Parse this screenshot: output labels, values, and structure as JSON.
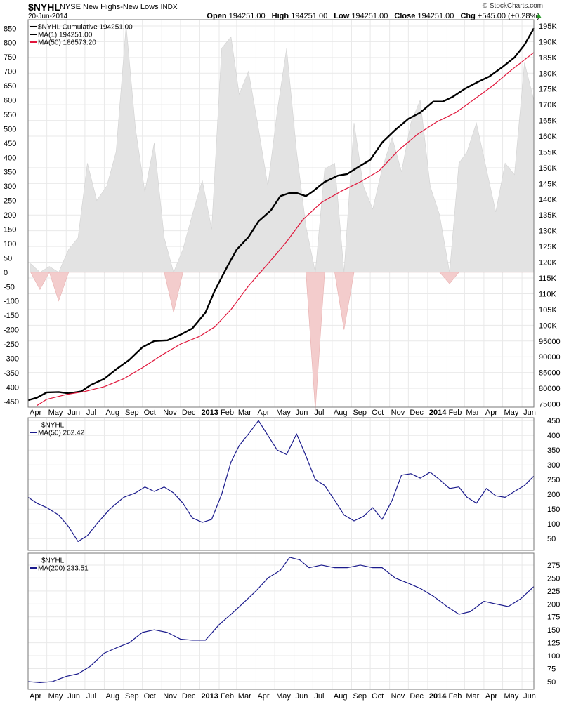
{
  "header": {
    "symbol": "$NYHL",
    "description": "NYSE New Highs-New Lows",
    "type_label": "INDX",
    "date": "20-Jun-2014",
    "brand": "© StockCharts.com",
    "open_label": "Open",
    "open": "194251.00",
    "high_label": "High",
    "high": "194251.00",
    "low_label": "Low",
    "low": "194251.00",
    "close_label": "Close",
    "close": "194251.00",
    "chg_label": "Chg",
    "chg": "+545.00 (+0.28%)",
    "chg_direction": "up"
  },
  "colors": {
    "cumulative": "#000000",
    "ma50_red": "#e0153a",
    "histogram_pos": "#e3e3e3",
    "histogram_neg": "#f3cccc",
    "ma_blue": "#1a1a8c",
    "grid": "#e9e9e9"
  },
  "x_axis": {
    "labels": [
      "Apr",
      "May",
      "Jun",
      "Jul",
      "Aug",
      "Sep",
      "Oct",
      "Nov",
      "Dec",
      "2013",
      "Feb",
      "Mar",
      "Apr",
      "May",
      "Jun",
      "Jul",
      "Aug",
      "Sep",
      "Oct",
      "Nov",
      "Dec",
      "2014",
      "Feb",
      "Mar",
      "Apr",
      "May",
      "Jun"
    ],
    "bold_labels": [
      "2013",
      "2014"
    ],
    "start": "2012-04",
    "end": "2014-06-20"
  },
  "chart_data": [
    {
      "type": "line",
      "panel": "main",
      "legend": [
        {
          "label": "$NYHL Cumulative 194251.00",
          "color": "#000000"
        },
        {
          "label": "MA(1) 194251.00",
          "color": "#000000"
        },
        {
          "label": "MA(50) 186573.20",
          "color": "#e0153a"
        }
      ],
      "left_axis": {
        "ticks": [
          850,
          800,
          750,
          700,
          650,
          600,
          550,
          500,
          450,
          400,
          350,
          300,
          250,
          200,
          150,
          100,
          50,
          0,
          -50,
          -100,
          -150,
          -200,
          -250,
          -300,
          -350,
          -400,
          -450
        ],
        "ylim": [
          -470,
          880
        ]
      },
      "right_axis": {
        "ticks": [
          195000,
          190000,
          185000,
          180000,
          175000,
          170000,
          165000,
          160000,
          155000,
          150000,
          145000,
          140000,
          135000,
          130000,
          125000,
          120000,
          115000,
          110000,
          105000,
          100000,
          95000,
          90000,
          85000,
          80000,
          75000
        ],
        "tick_labels": [
          "195K",
          "190K",
          "185K",
          "180K",
          "175K",
          "170K",
          "165K",
          "160K",
          "155K",
          "150K",
          "145K",
          "140K",
          "135K",
          "130K",
          "125K",
          "120K",
          "115K",
          "110K",
          "105K",
          "100K",
          "95000",
          "90000",
          "85000",
          "80000",
          "75000"
        ],
        "ylim": [
          74000,
          197000
        ]
      },
      "series": [
        {
          "name": "$NYHL Cumulative",
          "axis": "right",
          "color": "#000000",
          "x": [
            "2012-04-01",
            "2012-04-15",
            "2012-05-01",
            "2012-05-20",
            "2012-06-05",
            "2012-06-25",
            "2012-07-10",
            "2012-08-01",
            "2012-08-20",
            "2012-09-10",
            "2012-10-01",
            "2012-10-20",
            "2012-11-10",
            "2012-12-01",
            "2012-12-20",
            "2013-01-10",
            "2013-01-25",
            "2013-02-15",
            "2013-03-01",
            "2013-03-20",
            "2013-04-05",
            "2013-04-25",
            "2013-05-10",
            "2013-05-25",
            "2013-06-05",
            "2013-06-20",
            "2013-07-01",
            "2013-07-20",
            "2013-08-10",
            "2013-08-25",
            "2013-09-10",
            "2013-10-01",
            "2013-10-20",
            "2013-11-10",
            "2013-12-01",
            "2013-12-20",
            "2014-01-10",
            "2014-01-25",
            "2014-02-10",
            "2014-03-01",
            "2014-03-20",
            "2014-04-10",
            "2014-05-01",
            "2014-05-20",
            "2014-06-05",
            "2014-06-20"
          ],
          "y": [
            76200,
            77000,
            78700,
            78800,
            78400,
            79000,
            81000,
            83000,
            86000,
            89000,
            93000,
            95000,
            95200,
            97000,
            99000,
            104000,
            111000,
            119000,
            124000,
            128000,
            133000,
            136500,
            141000,
            142000,
            142000,
            141000,
            142500,
            145500,
            147500,
            148000,
            150000,
            152500,
            158000,
            162000,
            165500,
            167500,
            171000,
            171000,
            172500,
            175000,
            177000,
            179000,
            182000,
            185000,
            189000,
            194251
          ]
        },
        {
          "name": "MA(50)",
          "axis": "right",
          "color": "#e0153a",
          "x": [
            "2012-04-15",
            "2012-05-01",
            "2012-06-01",
            "2012-07-01",
            "2012-08-01",
            "2012-09-01",
            "2012-10-01",
            "2012-11-01",
            "2012-12-01",
            "2013-01-01",
            "2013-01-25",
            "2013-02-20",
            "2013-03-20",
            "2013-04-20",
            "2013-05-20",
            "2013-06-15",
            "2013-07-15",
            "2013-08-15",
            "2013-09-15",
            "2013-10-15",
            "2013-11-15",
            "2013-12-15",
            "2014-01-15",
            "2014-02-15",
            "2014-03-15",
            "2014-04-15",
            "2014-05-15",
            "2014-06-20"
          ],
          "y": [
            74500,
            76500,
            78000,
            79000,
            80500,
            83000,
            86500,
            90500,
            94000,
            96500,
            99500,
            105000,
            112500,
            119500,
            126500,
            133500,
            139000,
            142500,
            145500,
            149000,
            155500,
            160500,
            164500,
            167500,
            171500,
            176000,
            181000,
            186573
          ]
        }
      ],
      "histogram": {
        "name": "$NYHL",
        "axis": "left",
        "x": [
          "2012-04-05",
          "2012-04-20",
          "2012-05-05",
          "2012-05-20",
          "2012-06-05",
          "2012-06-20",
          "2012-07-05",
          "2012-07-20",
          "2012-08-05",
          "2012-08-20",
          "2012-09-05",
          "2012-09-20",
          "2012-10-05",
          "2012-10-20",
          "2012-11-05",
          "2012-11-20",
          "2012-12-05",
          "2012-12-20",
          "2013-01-05",
          "2013-01-20",
          "2013-02-05",
          "2013-02-20",
          "2013-03-05",
          "2013-03-20",
          "2013-04-05",
          "2013-04-20",
          "2013-05-05",
          "2013-05-20",
          "2013-06-05",
          "2013-06-20",
          "2013-07-05",
          "2013-07-20",
          "2013-08-05",
          "2013-08-20",
          "2013-09-05",
          "2013-09-20",
          "2013-10-05",
          "2013-10-20",
          "2013-11-05",
          "2013-11-20",
          "2013-12-05",
          "2013-12-20",
          "2014-01-05",
          "2014-01-20",
          "2014-02-05",
          "2014-02-20",
          "2014-03-05",
          "2014-03-20",
          "2014-04-05",
          "2014-04-20",
          "2014-05-05",
          "2014-05-20",
          "2014-06-05",
          "2014-06-20"
        ],
        "y": [
          30,
          -60,
          20,
          -100,
          80,
          120,
          380,
          250,
          300,
          420,
          860,
          500,
          280,
          450,
          120,
          -140,
          80,
          200,
          320,
          150,
          780,
          820,
          620,
          700,
          500,
          300,
          560,
          780,
          420,
          160,
          -480,
          360,
          380,
          -200,
          520,
          300,
          220,
          360,
          470,
          350,
          520,
          600,
          300,
          200,
          -40,
          380,
          420,
          520,
          360,
          210,
          380,
          340,
          730,
          600
        ]
      }
    },
    {
      "type": "line",
      "panel": "middle",
      "legend": [
        {
          "label": "$NYHL",
          "color": "#000000"
        },
        {
          "label": "MA(50) 262.42",
          "color": "#1a1a8c"
        }
      ],
      "right_axis": {
        "ticks": [
          450,
          400,
          350,
          300,
          250,
          200,
          150,
          100,
          50
        ],
        "ylim": [
          10,
          460
        ]
      },
      "series": [
        {
          "name": "MA(50)",
          "color": "#1a1a8c",
          "x": [
            "2012-04-01",
            "2012-04-15",
            "2012-05-01",
            "2012-05-20",
            "2012-06-05",
            "2012-06-20",
            "2012-07-05",
            "2012-07-20",
            "2012-08-10",
            "2012-09-01",
            "2012-09-20",
            "2012-10-05",
            "2012-10-20",
            "2012-11-05",
            "2012-11-20",
            "2012-12-05",
            "2012-12-20",
            "2013-01-05",
            "2013-01-20",
            "2013-02-05",
            "2013-02-20",
            "2013-03-05",
            "2013-03-20",
            "2013-04-05",
            "2013-04-20",
            "2013-05-05",
            "2013-05-20",
            "2013-06-05",
            "2013-06-20",
            "2013-07-05",
            "2013-07-20",
            "2013-08-05",
            "2013-08-20",
            "2013-09-05",
            "2013-09-20",
            "2013-10-05",
            "2013-10-20",
            "2013-11-05",
            "2013-11-20",
            "2013-12-05",
            "2013-12-20",
            "2014-01-05",
            "2014-01-20",
            "2014-02-05",
            "2014-02-20",
            "2014-03-05",
            "2014-03-20",
            "2014-04-05",
            "2014-04-20",
            "2014-05-05",
            "2014-05-20",
            "2014-06-05",
            "2014-06-20"
          ],
          "y": [
            190,
            170,
            155,
            130,
            90,
            40,
            60,
            100,
            150,
            190,
            205,
            225,
            210,
            225,
            205,
            170,
            120,
            105,
            115,
            200,
            310,
            365,
            405,
            450,
            400,
            350,
            335,
            405,
            330,
            250,
            230,
            180,
            130,
            110,
            125,
            155,
            115,
            180,
            265,
            270,
            255,
            275,
            250,
            220,
            225,
            190,
            170,
            220,
            195,
            190,
            210,
            230,
            262
          ]
        }
      ]
    },
    {
      "type": "line",
      "panel": "bottom",
      "legend": [
        {
          "label": "$NYHL",
          "color": "#000000"
        },
        {
          "label": "MA(200) 233.51",
          "color": "#1a1a8c"
        }
      ],
      "right_axis": {
        "ticks": [
          275,
          250,
          225,
          200,
          175,
          150,
          125,
          100,
          75,
          50
        ],
        "ylim": [
          35,
          298
        ]
      },
      "series": [
        {
          "name": "MA(200)",
          "color": "#1a1a8c",
          "x": [
            "2012-04-01",
            "2012-04-20",
            "2012-05-10",
            "2012-06-01",
            "2012-06-20",
            "2012-07-10",
            "2012-08-01",
            "2012-08-20",
            "2012-09-10",
            "2012-10-01",
            "2012-10-20",
            "2012-11-10",
            "2012-12-01",
            "2012-12-20",
            "2013-01-10",
            "2013-02-01",
            "2013-02-20",
            "2013-03-10",
            "2013-04-01",
            "2013-04-20",
            "2013-05-10",
            "2013-05-25",
            "2013-06-10",
            "2013-06-25",
            "2013-07-15",
            "2013-08-05",
            "2013-08-25",
            "2013-09-15",
            "2013-10-05",
            "2013-10-20",
            "2013-11-10",
            "2013-12-01",
            "2013-12-20",
            "2014-01-10",
            "2014-02-01",
            "2014-02-20",
            "2014-03-10",
            "2014-04-01",
            "2014-04-20",
            "2014-05-10",
            "2014-05-30",
            "2014-06-20"
          ],
          "y": [
            50,
            48,
            50,
            60,
            65,
            80,
            105,
            115,
            125,
            145,
            150,
            145,
            132,
            130,
            130,
            160,
            180,
            200,
            225,
            250,
            265,
            290,
            285,
            270,
            275,
            270,
            270,
            275,
            270,
            270,
            250,
            240,
            230,
            215,
            195,
            180,
            185,
            205,
            200,
            195,
            210,
            233.51
          ]
        }
      ]
    }
  ]
}
